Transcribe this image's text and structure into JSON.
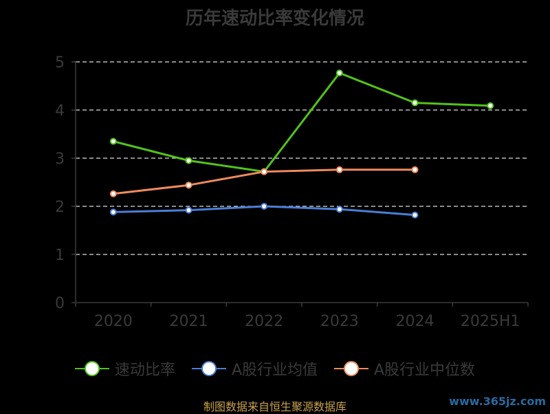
{
  "chart_data": {
    "type": "line",
    "title": "历年速动比率变化情况",
    "categories": [
      "2020",
      "2021",
      "2022",
      "2023",
      "2024",
      "2025H1"
    ],
    "ylim": [
      0,
      5
    ],
    "yticks": [
      0,
      1,
      2,
      3,
      4,
      5
    ],
    "grid": true,
    "legend_position": "bottom",
    "series": [
      {
        "name": "速动比率",
        "color": "#52c41a",
        "values": [
          3.35,
          2.95,
          2.72,
          4.77,
          4.15,
          4.09
        ]
      },
      {
        "name": "A股行业均值",
        "color": "#4a7fd6",
        "values": [
          1.88,
          1.92,
          2.0,
          1.94,
          1.82,
          null
        ]
      },
      {
        "name": "A股行业中位数",
        "color": "#f08a5d",
        "values": [
          2.26,
          2.44,
          2.72,
          2.76,
          2.76,
          null
        ]
      }
    ]
  },
  "footer": {
    "source": "制图数据来自恒生聚源数据库",
    "watermark": "www.365jz.com"
  }
}
